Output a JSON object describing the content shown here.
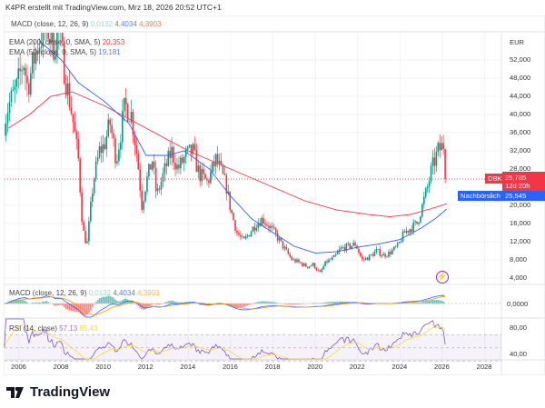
{
  "caption": "K4PR erstellt mit TradingView.com, Mrz 18, 2026 20:52 UTC+1",
  "legend": {
    "macd_top": {
      "name": "MACD (close, 12, 26, 9)",
      "hist": "0,0132",
      "macd": "4,4034",
      "signal": "4,3903"
    },
    "ema200": {
      "name": "EMA (200, close, 0, SMA, 5)",
      "value": "20,353"
    },
    "ema50": {
      "name": "EMA (50, close, 0, SMA, 5)",
      "value": "19,181"
    },
    "macd_pane": {
      "name": "MACD (close, 12, 26, 9)",
      "hist": "0,0132",
      "macd": "4,4034",
      "signal": "4,3903"
    },
    "rsi": {
      "name": "RSI (14, close)",
      "value": "57,13",
      "ma": "85,43"
    }
  },
  "price_axis": {
    "currency": "EUR",
    "ticks": [
      "52,000",
      "48,000",
      "44,000",
      "40,000",
      "36,000",
      "32,000",
      "28,000",
      "20,000",
      "16,000",
      "12,000",
      "8,000",
      "4,000"
    ],
    "tick_values": [
      52,
      48,
      44,
      40,
      36,
      32,
      28,
      20,
      16,
      12,
      8,
      4
    ]
  },
  "macd_axis": {
    "ticks": [
      "0,0000"
    ]
  },
  "rsi_axis": {
    "ticks": [
      "80,00",
      "40,00"
    ]
  },
  "time_axis": {
    "ticks": [
      "2006",
      "2008",
      "2010",
      "2012",
      "2014",
      "2016",
      "2018",
      "2020",
      "2022",
      "2024",
      "2026",
      "2028"
    ]
  },
  "tags": {
    "symbol": "DBK",
    "last_price": "25,785",
    "countdown": "12d 20h",
    "afterhours_label": "Nachbörslich",
    "afterhours_price": "25,545"
  },
  "colors": {
    "up": "#089981",
    "down": "#f23645",
    "ema200": "#f23645",
    "ema50": "#2962ff",
    "macd": "#2962ff",
    "signal": "#ff9800",
    "rsi": "#7e57c2",
    "rsi_ma": "#fdd835",
    "hist_label": "#9ad8cf"
  },
  "chart_data": {
    "type": "candlestick",
    "symbol": "DBK",
    "currency": "EUR",
    "interval": "monthly (approx.)",
    "price_path": [
      [
        2005.3,
        38
      ],
      [
        2005.5,
        42
      ],
      [
        2005.9,
        46
      ],
      [
        2006.2,
        52
      ],
      [
        2006.4,
        46
      ],
      [
        2006.8,
        54
      ],
      [
        2007.3,
        60
      ],
      [
        2007.6,
        55
      ],
      [
        2007.9,
        58
      ],
      [
        2008.2,
        48
      ],
      [
        2008.5,
        40
      ],
      [
        2008.8,
        30
      ],
      [
        2009.0,
        15
      ],
      [
        2009.2,
        11
      ],
      [
        2009.5,
        25
      ],
      [
        2009.8,
        32
      ],
      [
        2010.0,
        33
      ],
      [
        2010.3,
        38
      ],
      [
        2010.6,
        30
      ],
      [
        2011.0,
        42
      ],
      [
        2011.3,
        40
      ],
      [
        2011.6,
        30
      ],
      [
        2011.8,
        20
      ],
      [
        2012.0,
        25
      ],
      [
        2012.3,
        30
      ],
      [
        2012.5,
        22
      ],
      [
        2012.9,
        28
      ],
      [
        2013.2,
        32
      ],
      [
        2013.5,
        28
      ],
      [
        2013.9,
        31
      ],
      [
        2014.2,
        32
      ],
      [
        2014.5,
        27
      ],
      [
        2014.9,
        25
      ],
      [
        2015.3,
        30
      ],
      [
        2015.5,
        28
      ],
      [
        2015.8,
        24
      ],
      [
        2016.0,
        19
      ],
      [
        2016.3,
        14
      ],
      [
        2016.6,
        12
      ],
      [
        2016.9,
        14
      ],
      [
        2017.2,
        16
      ],
      [
        2017.5,
        17
      ],
      [
        2017.9,
        15
      ],
      [
        2018.2,
        13
      ],
      [
        2018.6,
        10
      ],
      [
        2018.9,
        8
      ],
      [
        2019.2,
        7.5
      ],
      [
        2019.6,
        6.5
      ],
      [
        2019.9,
        7
      ],
      [
        2020.2,
        5
      ],
      [
        2020.5,
        7.5
      ],
      [
        2020.9,
        8.5
      ],
      [
        2021.2,
        10.5
      ],
      [
        2021.6,
        11
      ],
      [
        2021.9,
        11.5
      ],
      [
        2022.2,
        8
      ],
      [
        2022.5,
        8.5
      ],
      [
        2022.9,
        10
      ],
      [
        2023.2,
        9
      ],
      [
        2023.5,
        9.5
      ],
      [
        2023.9,
        11
      ],
      [
        2024.2,
        14
      ],
      [
        2024.5,
        15
      ],
      [
        2024.8,
        16
      ],
      [
        2025.0,
        19
      ],
      [
        2025.3,
        24
      ],
      [
        2025.5,
        28
      ],
      [
        2025.8,
        32
      ],
      [
        2026.0,
        33
      ],
      [
        2026.15,
        34
      ],
      [
        2026.21,
        25.785
      ]
    ],
    "ema200_path": [
      [
        2005.5,
        37
      ],
      [
        2006.5,
        40
      ],
      [
        2007.5,
        44
      ],
      [
        2008.5,
        45
      ],
      [
        2010,
        42
      ],
      [
        2012,
        37
      ],
      [
        2014,
        32
      ],
      [
        2016,
        28
      ],
      [
        2018,
        24
      ],
      [
        2019.5,
        21
      ],
      [
        2021,
        19
      ],
      [
        2022.5,
        18
      ],
      [
        2023.5,
        17.5
      ],
      [
        2024.5,
        18
      ],
      [
        2025.5,
        19.3
      ],
      [
        2026.2,
        20.353
      ]
    ],
    "ema50_path": [
      [
        2007.0,
        56
      ],
      [
        2008.0,
        52
      ],
      [
        2008.8,
        47
      ],
      [
        2010,
        43
      ],
      [
        2011.2,
        38
      ],
      [
        2012,
        31
      ],
      [
        2013,
        31
      ],
      [
        2013.8,
        32
      ],
      [
        2015,
        28
      ],
      [
        2016,
        22
      ],
      [
        2017,
        17
      ],
      [
        2018,
        14
      ],
      [
        2019,
        11
      ],
      [
        2020,
        9.5
      ],
      [
        2021,
        9.8
      ],
      [
        2022,
        10.8
      ],
      [
        2023,
        11.5
      ],
      [
        2024,
        12.5
      ],
      [
        2025,
        15
      ],
      [
        2025.7,
        17.2
      ],
      [
        2026.2,
        19.181
      ]
    ],
    "y_range": [
      2.5,
      58
    ],
    "x_range": [
      2005.3,
      2029.0
    ]
  }
}
